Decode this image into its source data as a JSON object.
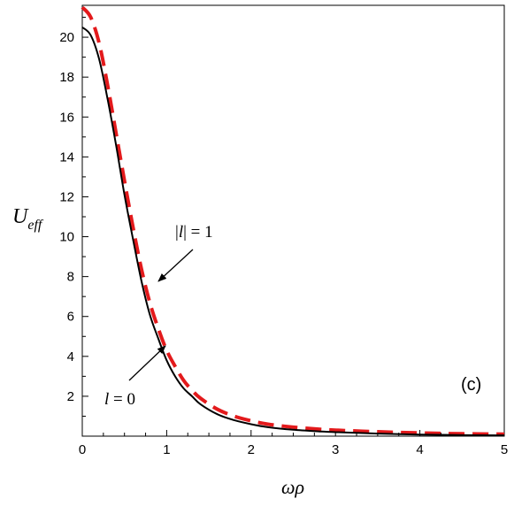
{
  "chart_data": {
    "type": "line",
    "xlabel": "ωρ",
    "ylabel": {
      "main": "U",
      "sub": "eff"
    },
    "xlim": [
      0,
      5
    ],
    "ylim": [
      0,
      21.6
    ],
    "xticks": [
      0,
      1,
      2,
      3,
      4,
      5
    ],
    "yticks": [
      2,
      4,
      6,
      8,
      10,
      12,
      14,
      16,
      18,
      20
    ],
    "grid": false,
    "panel_label": "(c)",
    "series": [
      {
        "label": "l = 0",
        "color": "#000000",
        "style": "solid",
        "x": [
          0,
          0.1,
          0.2,
          0.3,
          0.4,
          0.5,
          0.6,
          0.7,
          0.8,
          0.9,
          1.0,
          1.1,
          1.2,
          1.3,
          1.4,
          1.6,
          1.8,
          2.0,
          2.2,
          2.5,
          2.8,
          3.0,
          3.5,
          4.0,
          4.5,
          5.0
        ],
        "y": [
          20.5,
          20.1,
          18.9,
          16.9,
          14.6,
          12.1,
          9.9,
          7.8,
          6.1,
          4.9,
          3.8,
          3.0,
          2.4,
          2.0,
          1.6,
          1.1,
          0.8,
          0.6,
          0.45,
          0.32,
          0.24,
          0.2,
          0.13,
          0.08,
          0.05,
          0.04
        ]
      },
      {
        "label": "|l| = 1",
        "color": "#e31a1c",
        "style": "dashed",
        "x": [
          0,
          0.1,
          0.2,
          0.3,
          0.4,
          0.5,
          0.6,
          0.7,
          0.8,
          0.9,
          1.0,
          1.1,
          1.2,
          1.3,
          1.4,
          1.6,
          1.8,
          2.0,
          2.2,
          2.5,
          2.8,
          3.0,
          3.5,
          4.0,
          4.5,
          5.0
        ],
        "y": [
          21.5,
          21.0,
          19.7,
          17.6,
          15.2,
          12.8,
          10.5,
          8.4,
          6.7,
          5.4,
          4.3,
          3.5,
          2.8,
          2.3,
          1.9,
          1.35,
          1.0,
          0.77,
          0.6,
          0.45,
          0.35,
          0.3,
          0.22,
          0.16,
          0.12,
          0.1
        ]
      }
    ],
    "annotations": [
      {
        "text_pre": "|",
        "text_it": "l",
        "text_post": "| = 1",
        "points_to": [
          0.88,
          7.8
        ]
      },
      {
        "text_pre": "",
        "text_it": "l",
        "text_post": " = 0",
        "points_to": [
          0.98,
          4.7
        ]
      }
    ]
  }
}
